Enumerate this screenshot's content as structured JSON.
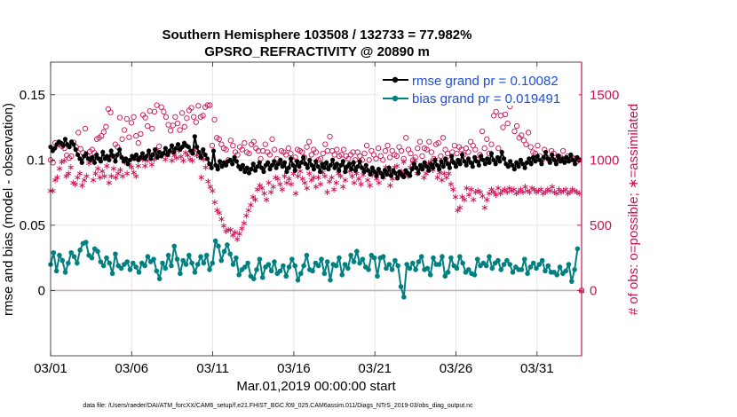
{
  "chart_data": {
    "type": "line",
    "title_line1": "Southern Hemisphere 103508 / 132733 = 77.982%",
    "title_line2": "GPSRO_REFRACTIVITY @ 20890 m",
    "xlabel": "Mar.01,2019 00:00:00 start",
    "ylabel": "rmse and bias (model - observation)",
    "ylabel_right": "# of obs: o=possible; ∗=assimilated",
    "footnote": "data file: /Users/raeder/DAI/ATM_forcXX/CAM6_setup/f.e21.FHIST_BGC.f09_025.CAM6assim.011/Diags_NTrS_2019-03/obs_diag_output.nc",
    "x_tick_labels": [
      "03/01",
      "03/06",
      "03/11",
      "03/16",
      "03/21",
      "03/26",
      "03/31"
    ],
    "x_tick_days": [
      0,
      5,
      10,
      15,
      20,
      25,
      30
    ],
    "xlim_days": [
      0,
      32.75
    ],
    "ylim": [
      -0.05,
      0.175
    ],
    "y_ticks": [
      0,
      0.05,
      0.1,
      0.15
    ],
    "y_tick_labels": [
      "0",
      "0.05",
      "0.1",
      "0.15"
    ],
    "ylim_right": [
      -500,
      1750
    ],
    "y_ticks_right": [
      0,
      500,
      1000,
      1500
    ],
    "y_tick_labels_right": [
      "0",
      "500",
      "1000",
      "1500"
    ],
    "legend": {
      "rmse_label": "rmse grand pr = 0.10082",
      "bias_label": "bias grand pr = 0.019491",
      "position": "top-right"
    },
    "colors": {
      "rmse": "#000000",
      "bias": "#008080",
      "obs": "#cc1155",
      "zero_line": "#c9a9c3",
      "grid": "#e6e6e6"
    },
    "rmse": [
      0.11,
      0.107,
      0.109,
      0.112,
      0.114,
      0.113,
      0.111,
      0.116,
      0.112,
      0.11,
      0.114,
      0.112,
      0.108,
      0.104,
      0.101,
      0.098,
      0.103,
      0.105,
      0.101,
      0.1,
      0.102,
      0.098,
      0.104,
      0.101,
      0.099,
      0.106,
      0.101,
      0.103,
      0.1,
      0.107,
      0.103,
      0.099,
      0.104,
      0.108,
      0.102,
      0.099,
      0.101,
      0.097,
      0.1,
      0.103,
      0.101,
      0.104,
      0.1,
      0.102,
      0.105,
      0.101,
      0.103,
      0.107,
      0.101,
      0.104,
      0.108,
      0.102,
      0.106,
      0.103,
      0.105,
      0.109,
      0.104,
      0.107,
      0.111,
      0.106,
      0.109,
      0.112,
      0.108,
      0.11,
      0.113,
      0.111,
      0.11,
      0.107,
      0.105,
      0.118,
      0.11,
      0.106,
      0.102,
      0.108,
      0.104,
      0.101,
      0.097,
      0.094,
      0.107,
      0.096,
      0.093,
      0.099,
      0.095,
      0.098,
      0.096,
      0.099,
      0.1,
      0.097,
      0.102,
      0.099,
      0.095,
      0.093,
      0.096,
      0.091,
      0.094,
      0.09,
      0.093,
      0.097,
      0.092,
      0.095,
      0.098,
      0.094,
      0.091,
      0.096,
      0.098,
      0.093,
      0.096,
      0.099,
      0.094,
      0.097,
      0.1,
      0.095,
      0.098,
      0.091,
      0.094,
      0.101,
      0.096,
      0.092,
      0.099,
      0.095,
      0.098,
      0.102,
      0.097,
      0.094,
      0.1,
      0.096,
      0.093,
      0.099,
      0.095,
      0.091,
      0.097,
      0.094,
      0.098,
      0.093,
      0.096,
      0.1,
      0.094,
      0.097,
      0.092,
      0.096,
      0.099,
      0.091,
      0.095,
      0.097,
      0.093,
      0.098,
      0.092,
      0.095,
      0.099,
      0.094,
      0.091,
      0.096,
      0.092,
      0.089,
      0.094,
      0.091,
      0.088,
      0.093,
      0.09,
      0.087,
      0.092,
      0.089,
      0.094,
      0.088,
      0.092,
      0.09,
      0.086,
      0.091,
      0.089,
      0.087,
      0.092,
      0.09,
      0.088,
      0.093,
      0.097,
      0.094,
      0.09,
      0.096,
      0.093,
      0.098,
      0.095,
      0.092,
      0.097,
      0.094,
      0.1,
      0.096,
      0.093,
      0.099,
      0.095,
      0.101,
      0.097,
      0.094,
      0.103,
      0.098,
      0.095,
      0.1,
      0.097,
      0.104,
      0.099,
      0.096,
      0.101,
      0.098,
      0.095,
      0.102,
      0.099,
      0.096,
      0.103,
      0.1,
      0.097,
      0.101,
      0.098,
      0.105,
      0.1,
      0.097,
      0.102,
      0.099,
      0.106,
      0.101,
      0.097,
      0.095,
      0.099,
      0.096,
      0.093,
      0.098,
      0.095,
      0.1,
      0.097,
      0.094,
      0.098,
      0.101,
      0.097,
      0.102,
      0.099,
      0.103,
      0.1,
      0.097,
      0.102,
      0.106,
      0.101,
      0.098,
      0.104,
      0.1,
      0.097,
      0.103,
      0.099,
      0.101,
      0.098,
      0.102,
      0.099,
      0.104,
      0.1,
      0.097,
      0.102,
      0.1
    ],
    "bias": [
      0.02,
      0.029,
      0.015,
      0.027,
      0.023,
      0.014,
      0.021,
      0.029,
      0.026,
      0.021,
      0.031,
      0.036,
      0.037,
      0.027,
      0.025,
      0.032,
      0.03,
      0.022,
      0.019,
      0.025,
      0.021,
      0.013,
      0.028,
      0.019,
      0.017,
      0.02,
      0.022,
      0.016,
      0.021,
      0.018,
      0.014,
      0.021,
      0.019,
      0.026,
      0.022,
      0.024,
      0.015,
      0.009,
      0.021,
      0.017,
      0.027,
      0.019,
      0.034,
      0.024,
      0.013,
      0.023,
      0.02,
      0.027,
      0.021,
      0.014,
      0.02,
      0.026,
      0.021,
      0.027,
      0.016,
      0.021,
      0.038,
      0.034,
      0.023,
      0.03,
      0.035,
      0.028,
      0.02,
      0.025,
      0.012,
      0.016,
      0.018,
      0.021,
      0.011,
      0.009,
      0.016,
      0.024,
      0.01,
      0.018,
      0.02,
      0.015,
      0.022,
      0.013,
      0.015,
      0.019,
      0.011,
      0.018,
      0.024,
      0.019,
      0.008,
      0.013,
      0.019,
      0.027,
      0.016,
      0.015,
      0.021,
      0.019,
      0.024,
      0.013,
      0.022,
      0.008,
      0.02,
      0.019,
      0.025,
      0.012,
      0.02,
      0.017,
      0.027,
      0.022,
      0.03,
      0.021,
      0.024,
      0.018,
      0.016,
      0.027,
      0.025,
      0.011,
      0.025,
      0.026,
      0.017,
      0.02,
      0.016,
      0.023,
      0.019,
      0.003,
      -0.005,
      0.02,
      0.017,
      0.021,
      0.016,
      0.022,
      0.026,
      0.016,
      0.017,
      0.012,
      0.025,
      0.02,
      0.02,
      0.026,
      0.011,
      0.014,
      0.025,
      0.019,
      0.017,
      0.026,
      0.021,
      0.014,
      0.016,
      0.013,
      0.012,
      0.024,
      0.019,
      0.021,
      0.019,
      0.026,
      0.017,
      0.021,
      0.023,
      0.016,
      0.02,
      0.023,
      0.02,
      0.014,
      0.018,
      0.016,
      0.016,
      0.024,
      0.013,
      0.018,
      0.021,
      0.017,
      0.02,
      0.023,
      0.015,
      0.019,
      0.014,
      0.014,
      0.012,
      0.018,
      0.013,
      0.015,
      0.02,
      0.007,
      0.016,
      0.032
    ],
    "obs_possible": [
      1000,
      980,
      1130,
      1115,
      1125,
      1105,
      1090,
      1035,
      1015,
      1030,
      1135,
      1100,
      1210,
      1085,
      1055,
      1240,
      1030,
      1065,
      1080,
      1055,
      1160,
      1170,
      1185,
      1215,
      1255,
      1390,
      1365,
      1030,
      1120,
      1100,
      1325,
      1160,
      1230,
      1315,
      1175,
      1285,
      1330,
      1185,
      1130,
      1200,
      1345,
      1325,
      1260,
      1375,
      1240,
      1370,
      1420,
      1105,
      1405,
      1370,
      1330,
      1270,
      1225,
      1265,
      1330,
      1280,
      1230,
      1360,
      1255,
      1320,
      1380,
      1400,
      1330,
      1290,
      1415,
      1330,
      1340,
      1405,
      1420,
      1420,
      1110,
      1310,
      1170,
      1160,
      1120,
      1090,
      1080,
      1000,
      1150,
      1110,
      1060,
      1040,
      1100,
      1080,
      1130,
      1060,
      1050,
      1120,
      1140,
      1090,
      1070,
      1010,
      1070,
      1120,
      1060,
      1040,
      1160,
      1080,
      1010,
      980,
      1070,
      1060,
      1040,
      1090,
      1050,
      1000,
      1020,
      1080,
      1070,
      1060,
      1020,
      1100,
      1140,
      1040,
      1080,
      1060,
      1000,
      1010,
      1050,
      1120,
      1070,
      1180,
      1070,
      1040,
      1080,
      1030,
      1040,
      1080,
      1030,
      1010,
      1040,
      1060,
      1000,
      1060,
      1030,
      1000,
      1050,
      1110,
      1000,
      1070,
      1040,
      1010,
      1090,
      1030,
      1000,
      1070,
      1110,
      1020,
      1070,
      1040,
      1030,
      1100,
      1070,
      1010,
      1170,
      1080,
      1050,
      1000,
      1020,
      1090,
      1140,
      1030,
      1090,
      1080,
      1140,
      1060,
      1010,
      1120,
      1130,
      1030,
      1170,
      1080,
      1050,
      1000,
      1060,
      1110,
      1050,
      1100,
      1080,
      1040,
      1090,
      1060,
      1140,
      1110,
      1080,
      1000,
      1040,
      1220,
      1090,
      1160,
      1050,
      1120,
      1340,
      1370,
      1090,
      1340,
      1250,
      1350,
      1280,
      1410,
      1440,
      1220,
      1260,
      1170,
      1190,
      1150,
      1120,
      1210,
      1100,
      1060,
      1050,
      1110,
      1030,
      1000,
      1080,
      1020,
      1000,
      1070,
      1050,
      1000,
      1030,
      1020,
      1070,
      1010,
      1030,
      1000,
      1020,
      1010,
      990,
      1000
    ],
    "obs_assimilated": [
      770,
      770,
      850,
      870,
      940,
      990,
      1000,
      880,
      900,
      950,
      830,
      820,
      870,
      900,
      810,
      850,
      880,
      980,
      1000,
      850,
      900,
      940,
      870,
      920,
      880,
      960,
      830,
      880,
      940,
      870,
      900,
      930,
      880,
      990,
      900,
      970,
      950,
      910,
      880,
      960,
      1020,
      1010,
      960,
      1000,
      1050,
      970,
      1010,
      1080,
      1030,
      1060,
      1050,
      1010,
      1040,
      1060,
      1000,
      1040,
      1020,
      1080,
      1030,
      1000,
      1060,
      1040,
      1010,
      1000,
      1080,
      1040,
      1030,
      870,
      1010,
      950,
      840,
      800,
      770,
      680,
      620,
      600,
      550,
      500,
      460,
      470,
      470,
      430,
      450,
      400,
      440,
      480,
      520,
      580,
      620,
      660,
      720,
      700,
      780,
      810,
      790,
      750,
      700,
      830,
      760,
      800,
      870,
      860,
      820,
      780,
      880,
      830,
      860,
      820,
      900,
      750,
      880,
      920,
      860,
      830,
      790,
      900,
      850,
      870,
      800,
      870,
      820,
      910,
      880,
      760,
      840,
      870,
      780,
      830,
      900,
      880,
      800,
      850,
      950,
      920,
      880,
      830,
      900,
      860,
      820,
      890,
      930,
      850,
      810,
      890,
      920,
      860,
      830,
      900,
      870,
      950,
      900,
      810,
      860,
      950,
      960,
      880,
      920,
      990,
      900,
      880,
      950,
      980,
      1000,
      900,
      930,
      960,
      870,
      900,
      980,
      990,
      930,
      1010,
      870,
      910,
      850,
      900,
      870,
      900,
      820,
      780,
      720,
      620,
      640,
      720,
      700,
      790,
      740,
      780,
      700,
      760,
      770,
      760,
      730,
      640,
      700,
      750,
      780,
      760,
      740,
      790,
      750,
      770,
      780,
      760,
      790,
      770,
      780,
      750,
      760,
      780,
      760,
      800,
      770,
      760,
      790,
      780,
      760,
      770,
      780,
      750,
      760,
      780,
      770,
      800,
      760,
      750,
      780,
      760,
      770,
      780,
      750,
      760,
      780,
      770,
      760,
      750
    ],
    "obs_last_point": 0
  }
}
